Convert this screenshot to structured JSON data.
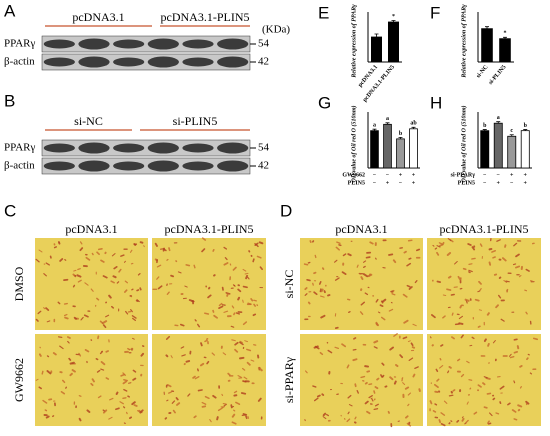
{
  "panel_letters": [
    "A",
    "B",
    "C",
    "D",
    "E",
    "F",
    "G",
    "H"
  ],
  "blots": [
    {
      "groups": [
        "pcDNA3.1",
        "pcDNA3.1-PLIN5"
      ],
      "rows": [
        "PPARγ",
        "β-actin"
      ],
      "unit": "(KDa)",
      "sizes": [
        54,
        42
      ]
    },
    {
      "groups": [
        "si-NC",
        "si-PLIN5"
      ],
      "rows": [
        "PPARγ",
        "β-actin"
      ],
      "sizes": [
        54,
        42
      ]
    }
  ],
  "chart_data": [
    {
      "type": "bar",
      "ylabel": "Relative expression of PPARγ",
      "categories": [
        "pcDNA3.1",
        "pcDNA3.1-PLIN5"
      ],
      "values": [
        1.0,
        1.6
      ],
      "errors": [
        0.12,
        0.06
      ],
      "colors": [
        "#000000",
        "#000000"
      ],
      "ylim": [
        0,
        2
      ],
      "annotations": [
        null,
        "*"
      ]
    },
    {
      "type": "bar",
      "ylabel": "Relative expression of PPARγ",
      "categories": [
        "si-NC",
        "si-PLIN5"
      ],
      "values": [
        1.0,
        0.7
      ],
      "errors": [
        0.06,
        0.04
      ],
      "colors": [
        "#000000",
        "#000000"
      ],
      "ylim": [
        0,
        1.5
      ],
      "annotations": [
        null,
        "*"
      ]
    },
    {
      "type": "bar",
      "ylabel": "OD value of Oil red O (510nm)",
      "values": [
        1.0,
        1.17,
        0.78,
        1.05
      ],
      "errors": [
        0.04,
        0.04,
        0.04,
        0.04
      ],
      "colors": [
        "#000000",
        "#666666",
        "#999999",
        "#ffffff"
      ],
      "ylim": [
        0,
        1.5
      ],
      "annotations": [
        "a",
        "a",
        "b",
        "ab"
      ],
      "treatments": [
        {
          "name": "GW9662",
          "signs": [
            "−",
            "−",
            "+",
            "+"
          ]
        },
        {
          "name": "PLIN5",
          "signs": [
            "−",
            "+",
            "−",
            "+"
          ]
        }
      ]
    },
    {
      "type": "bar",
      "ylabel": "OD value of Oil red O (510nm)",
      "values": [
        1.0,
        1.2,
        0.85,
        1.0
      ],
      "errors": [
        0.03,
        0.04,
        0.04,
        0.03
      ],
      "colors": [
        "#000000",
        "#666666",
        "#999999",
        "#ffffff"
      ],
      "ylim": [
        0,
        1.5
      ],
      "annotations": [
        "b",
        "a",
        "c",
        "b"
      ],
      "treatments": [
        {
          "name": "si-PPARγ",
          "signs": [
            "−",
            "−",
            "+",
            "+"
          ]
        },
        {
          "name": "PLIN5",
          "signs": [
            "−",
            "+",
            "−",
            "+"
          ]
        }
      ]
    }
  ],
  "micrographs": [
    {
      "columns": [
        "pcDNA3.1",
        "pcDNA3.1-PLIN5"
      ],
      "rows": [
        "DMSO",
        "GW9662"
      ]
    },
    {
      "columns": [
        "pcDNA3.1",
        "pcDNA3.1-PLIN5"
      ],
      "rows": [
        "si-NC",
        "si-PPARγ"
      ]
    }
  ]
}
